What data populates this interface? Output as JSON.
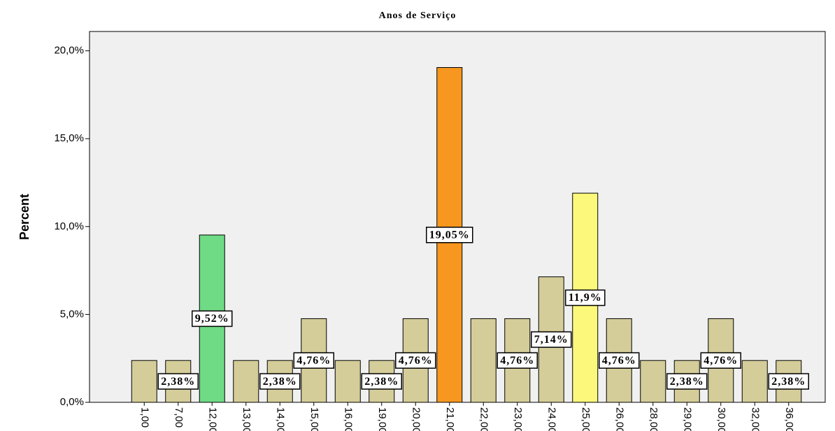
{
  "chart_data": {
    "type": "bar",
    "title": "Anos de Serviço",
    "y_label": "Percent",
    "categories": [
      "1,00",
      "7,00",
      "12,00",
      "13,00",
      "14,00",
      "15,00",
      "16,00",
      "19,00",
      "20,00",
      "21,00",
      "22,00",
      "23,00",
      "24,00",
      "25,00",
      "26,00",
      "28,00",
      "29,00",
      "30,00",
      "32,00",
      "36,00"
    ],
    "values": [
      2.38,
      2.38,
      9.52,
      2.38,
      2.38,
      4.76,
      2.38,
      2.38,
      4.76,
      19.05,
      4.76,
      4.76,
      7.14,
      11.9,
      4.76,
      2.38,
      2.38,
      4.76,
      2.38,
      2.38
    ],
    "value_labels": [
      null,
      "2,38%",
      "9,52%",
      null,
      "2,38%",
      "4,76%",
      null,
      "2,38%",
      "4,76%",
      "19,05%",
      null,
      "4,76%",
      "7,14%",
      "11,9%",
      "4,76%",
      null,
      "2,38%",
      "4,76%",
      null,
      "2,38%"
    ],
    "colors": [
      "#d4cd99",
      "#d4cd99",
      "#6fdb85",
      "#d4cd99",
      "#d4cd99",
      "#d4cd99",
      "#d4cd99",
      "#d4cd99",
      "#d4cd99",
      "#f7971f",
      "#d4cd99",
      "#d4cd99",
      "#d4cd99",
      "#fbf87c",
      "#d4cd99",
      "#d4cd99",
      "#d4cd99",
      "#d4cd99",
      "#d4cd99",
      "#d4cd99"
    ],
    "ylim": [
      0,
      21.1
    ],
    "yticks": [
      {
        "value": 0,
        "label": "0,0%"
      },
      {
        "value": 5,
        "label": "5,0%"
      },
      {
        "value": 10,
        "label": "10,0%"
      },
      {
        "value": 15,
        "label": "15,0%"
      },
      {
        "value": 20,
        "label": "20,0%"
      }
    ]
  }
}
